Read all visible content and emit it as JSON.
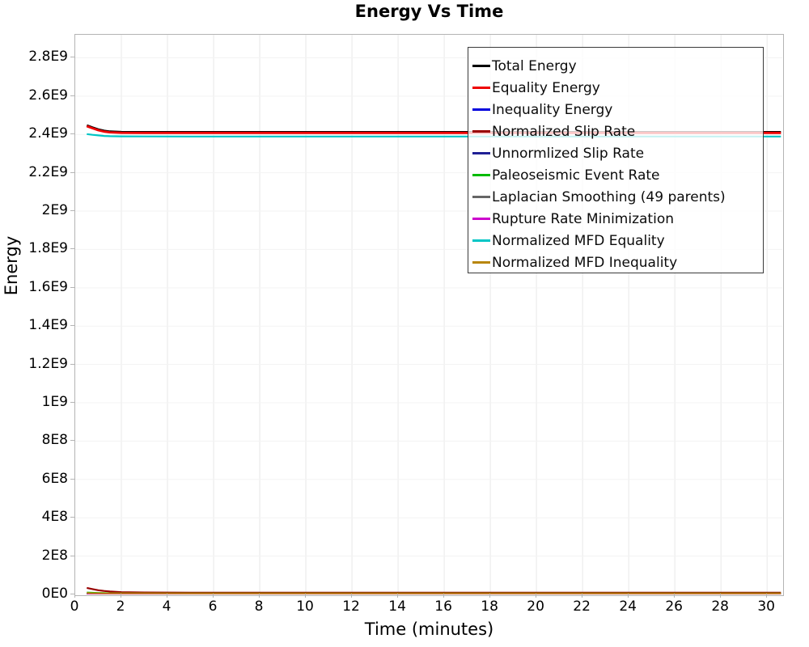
{
  "window": {
    "title": "Energy Vs Time"
  },
  "chart_data": {
    "type": "line",
    "title": "Energy Vs Time",
    "xlabel": "Time (minutes)",
    "ylabel": "Energy",
    "xlim": [
      0,
      30.66
    ],
    "ylim": [
      0,
      2920000000
    ],
    "grid": true,
    "legend_position": "top-right",
    "x_ticks": [
      0,
      2,
      4,
      6,
      8,
      10,
      12,
      14,
      16,
      18,
      20,
      22,
      24,
      26,
      28,
      30
    ],
    "y_ticks": {
      "labels": [
        "0E0",
        "2E8",
        "4E8",
        "6E8",
        "8E8",
        "1E9",
        "1.2E9",
        "1.4E9",
        "1.6E9",
        "1.8E9",
        "2E9",
        "2.2E9",
        "2.4E9",
        "2.6E9",
        "2.8E9"
      ],
      "values": [
        0,
        200000000,
        400000000,
        600000000,
        800000000,
        1000000000,
        1200000000,
        1400000000,
        1600000000,
        1800000000,
        2000000000,
        2200000000,
        2400000000,
        2600000000,
        2800000000
      ]
    },
    "x": [
      0.5,
      0.75,
      1,
      1.25,
      1.5,
      2,
      3,
      5,
      10,
      15,
      20,
      25,
      30.6
    ],
    "series": [
      {
        "name": "Total Energy",
        "color": "#000000",
        "width": 2.8,
        "values": [
          2447000000,
          2436000000,
          2426000000,
          2419000000,
          2415000000,
          2412500000,
          2412000000,
          2412000000,
          2412000000,
          2412000000,
          2412000000,
          2412000000,
          2412000000
        ]
      },
      {
        "name": "Equality Energy",
        "color": "#ee0000",
        "width": 2.8,
        "values": [
          2443000000,
          2432000000,
          2422000000,
          2415000000,
          2411000000,
          2408500000,
          2408000000,
          2408000000,
          2408000000,
          2408000000,
          2408000000,
          2408000000,
          2408000000
        ]
      },
      {
        "name": "Inequality Energy",
        "color": "#0000dd",
        "width": 2,
        "values": [
          4000000,
          4000000,
          4000000,
          4000000,
          4000000,
          4000000,
          4000000,
          4000000,
          4000000,
          4000000,
          4000000,
          4000000,
          4000000
        ]
      },
      {
        "name": "Normalized Slip Rate",
        "color": "#990000",
        "width": 2.2,
        "values": [
          34000000,
          28000000,
          22000000,
          18000000,
          15000000,
          12000000,
          10000000,
          9000000,
          9000000,
          9000000,
          9000000,
          9000000,
          9000000
        ]
      },
      {
        "name": "Unnormlized Slip Rate",
        "color": "#202095",
        "width": 2,
        "values": [
          3000000,
          3000000,
          3000000,
          3000000,
          3000000,
          3000000,
          3000000,
          3000000,
          3000000,
          3000000,
          3000000,
          3000000,
          3000000
        ]
      },
      {
        "name": "Paleoseismic Event Rate",
        "color": "#00bb00",
        "width": 2,
        "values": [
          10000000,
          9000000,
          8000000,
          7000000,
          6500000,
          6000000,
          5500000,
          5000000,
          5000000,
          5000000,
          5000000,
          5000000,
          5000000
        ]
      },
      {
        "name": "Laplacian Smoothing (49 parents)",
        "color": "#666666",
        "width": 2,
        "values": [
          3500000,
          3500000,
          3500000,
          3500000,
          3500000,
          3500000,
          3500000,
          3500000,
          3500000,
          3500000,
          3500000,
          3500000,
          3500000
        ]
      },
      {
        "name": "Rupture Rate Minimization",
        "color": "#cc00cc",
        "width": 2,
        "values": [
          1500000,
          1500000,
          1500000,
          1500000,
          1500000,
          1500000,
          1500000,
          1500000,
          1500000,
          1500000,
          1500000,
          1500000,
          1500000
        ]
      },
      {
        "name": "Normalized MFD Equality",
        "color": "#00c5c5",
        "width": 2.2,
        "values": [
          2402000000,
          2398000000,
          2395000000,
          2392000000,
          2391000000,
          2390000000,
          2389500000,
          2389000000,
          2389000000,
          2389000000,
          2389000000,
          2389000000,
          2389000000
        ]
      },
      {
        "name": "Normalized MFD Inequality",
        "color": "#b8860b",
        "width": 2,
        "values": [
          7000000,
          6500000,
          6200000,
          6000000,
          5900000,
          5800000,
          5700000,
          5600000,
          5600000,
          5600000,
          5600000,
          5600000,
          5600000
        ]
      }
    ]
  }
}
